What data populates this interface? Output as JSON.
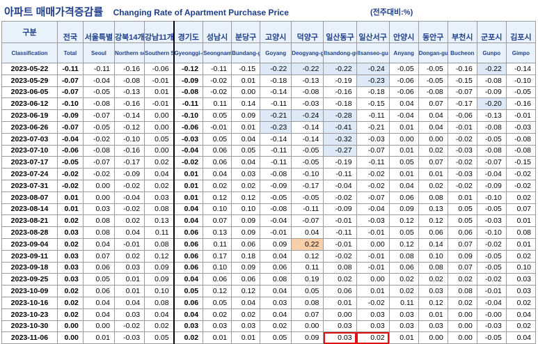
{
  "title": {
    "korean": "아파트 매매가격증감률",
    "english": "Changing Rate of Apartment Purchase Price",
    "unit": "(전주대비:%)"
  },
  "columns": [
    {
      "ko": "구분",
      "en": "Classification"
    },
    {
      "ko": "전국",
      "en": "Total"
    },
    {
      "ko": "서울특별",
      "en": "Seoul"
    },
    {
      "ko": "강북14개",
      "en": "Northern seoul"
    },
    {
      "ko": "강남11개",
      "en": "Southern Seoul"
    },
    {
      "ko": "경기도",
      "en": "Gyeonggi-do"
    },
    {
      "ko": "성남시",
      "en": "Seongnam"
    },
    {
      "ko": "분당구",
      "en": "Bundang-gu"
    },
    {
      "ko": "고양시",
      "en": "Goyang"
    },
    {
      "ko": "덕양구",
      "en": "Deogyang-gu"
    },
    {
      "ko": "일산동구",
      "en": "Ilsandong-gu"
    },
    {
      "ko": "일산서구",
      "en": "Ilsanseo-gu"
    },
    {
      "ko": "안양시",
      "en": "Anyang"
    },
    {
      "ko": "동안구",
      "en": "Dongan-gu"
    },
    {
      "ko": "부천시",
      "en": "Bucheon"
    },
    {
      "ko": "군포시",
      "en": "Gunpo"
    },
    {
      "ko": "김포시",
      "en": "Gimpo"
    }
  ],
  "rows": [
    {
      "date": "2023-05-22",
      "values": [
        "-0.11",
        "-0.11",
        "-0.16",
        "-0.06",
        "-0.12",
        "-0.11",
        "-0.15",
        "-0.22",
        "-0.22",
        "-0.22",
        "-0.24",
        "-0.05",
        "-0.05",
        "-0.16",
        "-0.22",
        "-0.14"
      ]
    },
    {
      "date": "2023-05-29",
      "values": [
        "-0.07",
        "-0.04",
        "-0.08",
        "-0.01",
        "-0.09",
        "-0.02",
        "0.01",
        "-0.18",
        "-0.13",
        "-0.19",
        "-0.23",
        "-0.06",
        "-0.05",
        "-0.15",
        "-0.08",
        "-0.10"
      ]
    },
    {
      "date": "2023-06-05",
      "values": [
        "-0.07",
        "-0.05",
        "-0.13",
        "0.01",
        "-0.08",
        "-0.02",
        "0.00",
        "-0.14",
        "-0.08",
        "-0.16",
        "-0.18",
        "-0.06",
        "-0.08",
        "-0.07",
        "-0.09",
        "-0.05"
      ]
    },
    {
      "date": "2023-06-12",
      "values": [
        "-0.10",
        "-0.08",
        "-0.16",
        "-0.01",
        "-0.11",
        "0.11",
        "0.14",
        "-0.11",
        "-0.03",
        "-0.18",
        "-0.15",
        "0.04",
        "0.07",
        "-0.17",
        "-0.20",
        "-0.16"
      ]
    },
    {
      "date": "2023-06-19",
      "values": [
        "-0.09",
        "-0.07",
        "-0.14",
        "0.00",
        "-0.10",
        "0.05",
        "0.09",
        "-0.21",
        "-0.24",
        "-0.28",
        "-0.11",
        "-0.04",
        "0.04",
        "-0.06",
        "-0.13",
        "-0.01"
      ]
    },
    {
      "date": "2023-06-26",
      "values": [
        "-0.07",
        "-0.05",
        "-0.12",
        "0.00",
        "-0.06",
        "-0.01",
        "0.01",
        "-0.23",
        "-0.14",
        "-0.41",
        "-0.21",
        "0.01",
        "0.04",
        "-0.01",
        "-0.08",
        "-0.03"
      ]
    },
    {
      "date": "2023-07-03",
      "values": [
        "-0.04",
        "-0.02",
        "-0.10",
        "0.05",
        "-0.03",
        "0.05",
        "0.04",
        "-0.14",
        "-0.14",
        "-0.32",
        "-0.03",
        "0.00",
        "0.00",
        "-0.02",
        "-0.05",
        "-0.08"
      ]
    },
    {
      "date": "2023-07-10",
      "values": [
        "-0.06",
        "-0.08",
        "-0.16",
        "0.00",
        "-0.04",
        "0.06",
        "0.05",
        "-0.11",
        "-0.05",
        "-0.27",
        "-0.07",
        "0.01",
        "0.02",
        "-0.03",
        "-0.08",
        "-0.08"
      ]
    },
    {
      "date": "2023-07-17",
      "values": [
        "-0.05",
        "-0.07",
        "-0.17",
        "0.02",
        "-0.02",
        "0.06",
        "0.04",
        "-0.11",
        "-0.05",
        "-0.19",
        "-0.11",
        "0.05",
        "0.07",
        "-0.02",
        "-0.07",
        "-0.15"
      ]
    },
    {
      "date": "2023-07-24",
      "values": [
        "-0.02",
        "-0.02",
        "-0.09",
        "0.04",
        "0.01",
        "0.04",
        "0.03",
        "-0.08",
        "-0.10",
        "-0.11",
        "-0.02",
        "0.01",
        "0.01",
        "-0.03",
        "-0.04",
        "-0.02"
      ]
    },
    {
      "date": "2023-07-31",
      "values": [
        "-0.02",
        "0.00",
        "-0.02",
        "0.02",
        "0.01",
        "0.02",
        "0.02",
        "-0.09",
        "-0.17",
        "-0.04",
        "-0.02",
        "0.04",
        "0.02",
        "-0.02",
        "-0.09",
        "-0.02"
      ]
    },
    {
      "date": "2023-08-07",
      "values": [
        "0.01",
        "0.00",
        "-0.04",
        "0.03",
        "0.01",
        "0.12",
        "0.12",
        "-0.05",
        "-0.05",
        "-0.02",
        "-0.07",
        "0.06",
        "0.08",
        "0.01",
        "-0.10",
        "0.02"
      ]
    },
    {
      "date": "2023-08-14",
      "values": [
        "0.01",
        "0.03",
        "-0.02",
        "0.08",
        "0.04",
        "0.10",
        "0.10",
        "-0.08",
        "-0.11",
        "-0.09",
        "-0.04",
        "0.09",
        "0.13",
        "0.05",
        "-0.05",
        "0.07"
      ]
    },
    {
      "date": "2023-08-21",
      "values": [
        "0.02",
        "0.08",
        "0.02",
        "0.13",
        "0.04",
        "0.07",
        "0.09",
        "-0.04",
        "-0.07",
        "-0.01",
        "-0.03",
        "0.12",
        "0.12",
        "0.05",
        "-0.03",
        "0.01"
      ]
    },
    {
      "date": "2023-08-28",
      "values": [
        "0.03",
        "0.08",
        "0.04",
        "0.11",
        "0.06",
        "0.13",
        "0.09",
        "-0.01",
        "0.04",
        "-0.11",
        "-0.01",
        "0.05",
        "0.06",
        "0.06",
        "-0.10",
        "0.08"
      ]
    },
    {
      "date": "2023-09-04",
      "values": [
        "0.02",
        "0.04",
        "-0.01",
        "0.08",
        "0.06",
        "0.11",
        "0.06",
        "0.09",
        "0.22",
        "-0.01",
        "0.00",
        "0.12",
        "0.14",
        "0.07",
        "-0.02",
        "0.01"
      ]
    },
    {
      "date": "2023-09-11",
      "values": [
        "0.03",
        "0.07",
        "0.02",
        "0.12",
        "0.06",
        "0.17",
        "0.18",
        "0.04",
        "0.12",
        "-0.02",
        "-0.01",
        "0.08",
        "0.10",
        "0.09",
        "-0.05",
        "0.02"
      ]
    },
    {
      "date": "2023-09-18",
      "values": [
        "0.03",
        "0.06",
        "0.03",
        "0.09",
        "0.06",
        "0.10",
        "0.09",
        "0.06",
        "0.11",
        "0.08",
        "-0.01",
        "0.06",
        "0.08",
        "0.07",
        "-0.05",
        "0.10"
      ]
    },
    {
      "date": "2023-09-25",
      "values": [
        "0.03",
        "0.05",
        "0.01",
        "0.09",
        "0.04",
        "0.06",
        "0.06",
        "0.08",
        "0.19",
        "0.02",
        "0.00",
        "0.02",
        "0.02",
        "0.02",
        "-0.02",
        "0.03"
      ]
    },
    {
      "date": "2023-10-09",
      "values": [
        "0.02",
        "0.06",
        "0.01",
        "0.10",
        "0.05",
        "0.12",
        "0.12",
        "0.04",
        "0.05",
        "0.06",
        "0.01",
        "0.02",
        "0.03",
        "0.08",
        "-0.01",
        "0.03"
      ]
    },
    {
      "date": "2023-10-16",
      "values": [
        "0.02",
        "0.04",
        "0.04",
        "0.08",
        "0.06",
        "0.05",
        "0.04",
        "0.03",
        "0.08",
        "0.01",
        "-0.02",
        "0.11",
        "0.12",
        "0.02",
        "-0.04",
        "0.02"
      ]
    },
    {
      "date": "2023-10-23",
      "values": [
        "0.02",
        "0.04",
        "0.03",
        "0.04",
        "0.04",
        "0.02",
        "0.02",
        "0.04",
        "0.07",
        "0.00",
        "0.03",
        "0.03",
        "0.01",
        "0.00",
        "-0.00",
        "0.04"
      ]
    },
    {
      "date": "2023-10-30",
      "values": [
        "0.00",
        "0.00",
        "-0.02",
        "0.02",
        "0.03",
        "0.03",
        "0.03",
        "0.02",
        "0.00",
        "0.03",
        "0.03",
        "0.03",
        "0.03",
        "0.00",
        "-0.03",
        "0.02"
      ]
    },
    {
      "date": "2023-11-06",
      "values": [
        "0.00",
        "0.01",
        "-0.03",
        "0.05",
        "0.02",
        "0.01",
        "0.01",
        "0.05",
        "0.09",
        "0.03",
        "0.02",
        "0.01",
        "0.00",
        "0.00",
        "-0.05",
        "0.04"
      ]
    }
  ],
  "highlights": {
    "blue": [
      [
        0,
        8
      ],
      [
        0,
        9
      ],
      [
        0,
        10
      ],
      [
        0,
        11
      ],
      [
        0,
        15
      ],
      [
        1,
        11
      ],
      [
        3,
        15
      ],
      [
        4,
        8
      ],
      [
        4,
        9
      ],
      [
        4,
        10
      ],
      [
        5,
        8
      ],
      [
        5,
        10
      ],
      [
        6,
        10
      ],
      [
        7,
        10
      ]
    ],
    "orange": [
      [
        15,
        9
      ]
    ],
    "red_box": [
      [
        23,
        10
      ],
      [
        23,
        11
      ]
    ]
  },
  "colors": {
    "title": "#1f3f8a",
    "header_bg": "#e9f1fa",
    "highlight_blue": "#dde9f7",
    "highlight_orange": "#f8cfa8",
    "highlight_red_border": "#e01010"
  }
}
